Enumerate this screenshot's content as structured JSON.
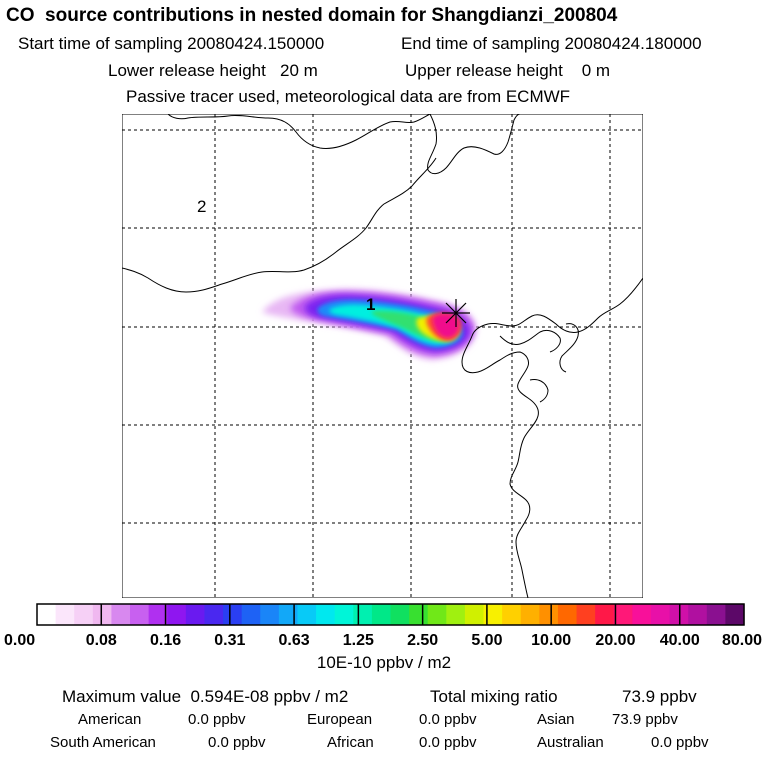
{
  "header": {
    "title": "CO  source contributions in nested domain for Shangdianzi_200804",
    "start_label": "Start time of sampling 20080424.150000",
    "end_label": "End time of sampling 20080424.180000",
    "lower_label": "Lower release height   20 m",
    "upper_label": "Upper release height    0 m",
    "tracer_label": "Passive tracer used, meteorological data are from ECMWF"
  },
  "map": {
    "region_labels": [
      "1",
      "2"
    ],
    "station_marker": "station-star"
  },
  "colorbar": {
    "unit": "10E-10 ppbv / m2",
    "tick_labels": [
      "0.00",
      "0.08",
      "0.16",
      "0.31",
      "0.63",
      "1.25",
      "2.50",
      "5.00",
      "10.00",
      "20.00",
      "40.00",
      "80.00"
    ],
    "colors": [
      "#ffffff",
      "#fbe6fb",
      "#f6d0f6",
      "#f0b8f0",
      "#d888ef",
      "#c860f0",
      "#b030f0",
      "#8f16f0",
      "#6a1af0",
      "#4a28f0",
      "#2a3ff2",
      "#1e62f5",
      "#1a85f8",
      "#12a8f8",
      "#08caf7",
      "#00e8ef",
      "#00f5d8",
      "#00f0b0",
      "#00e888",
      "#10e060",
      "#38e030",
      "#70e818",
      "#a0f010",
      "#d0f000",
      "#f8f000",
      "#ffd000",
      "#ffb000",
      "#ff9000",
      "#ff6800",
      "#ff4020",
      "#ff1848",
      "#ff1878",
      "#f8109a",
      "#e810a8",
      "#d010a8",
      "#b010a0",
      "#8a1090",
      "#5c0868"
    ]
  },
  "footer": {
    "max_label": "Maximum value  0.594E-08 ppbv / m2",
    "total_label": "Total mixing ratio",
    "total_value": "73.9 ppbv",
    "american_label": "American",
    "american_value": "0.0 ppbv",
    "european_label": "European",
    "european_value": "0.0 ppbv",
    "asian_label": "Asian",
    "asian_value": "73.9 ppbv",
    "south_american_label": "South American",
    "south_american_value": "0.0 ppbv",
    "african_label": "African",
    "african_value": "0.0 ppbv",
    "australian_label": "Australian",
    "australian_value": "0.0 ppbv"
  }
}
